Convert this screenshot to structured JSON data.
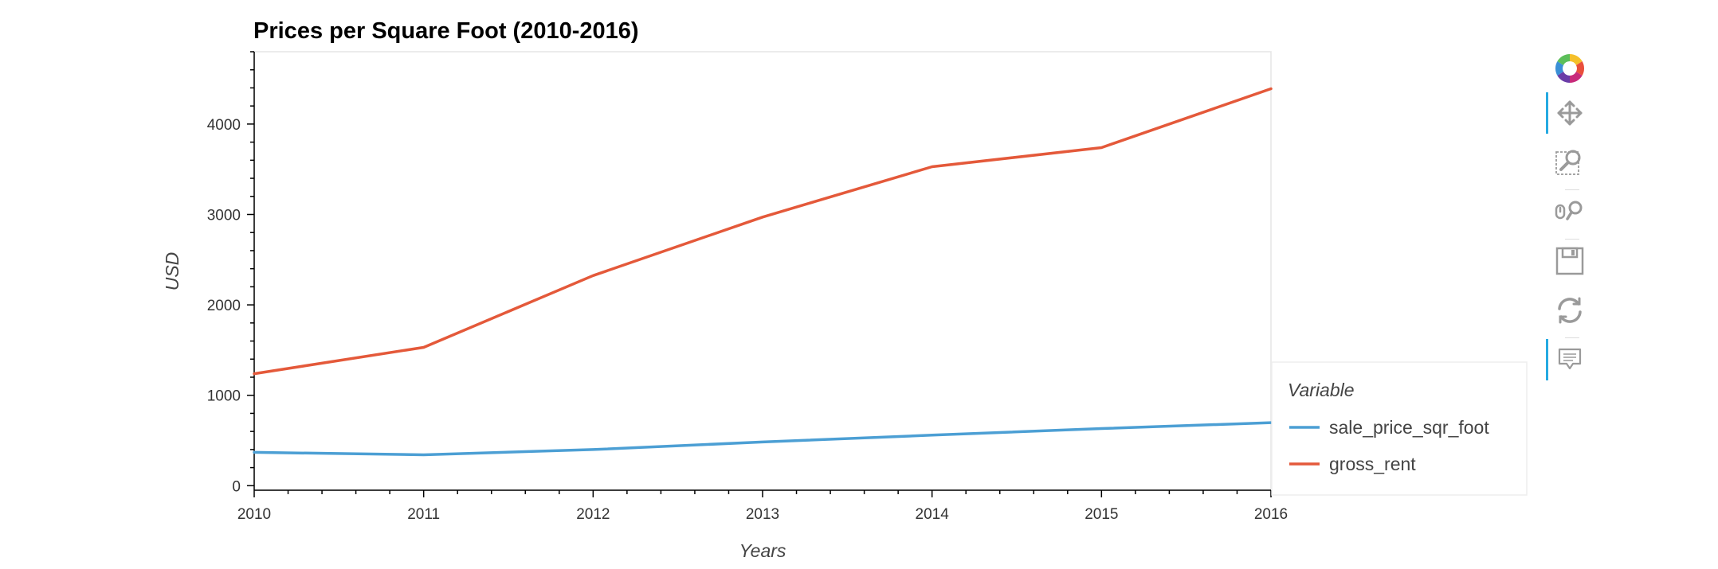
{
  "chart_data": {
    "type": "line",
    "title": "Prices per Square Foot (2010-2016)",
    "xlabel": "Years",
    "ylabel": "USD",
    "x": [
      2010,
      2011,
      2012,
      2013,
      2014,
      2015,
      2016
    ],
    "xlim": [
      2010,
      2016
    ],
    "ylim": [
      -50,
      4800
    ],
    "x_ticks": [
      "2010",
      "2011",
      "2012",
      "2013",
      "2014",
      "2015",
      "2016"
    ],
    "y_ticks": [
      "0",
      "1000",
      "2000",
      "3000",
      "4000"
    ],
    "grid": false,
    "legend_title": "Variable",
    "legend_position": "bottom-right, outside plot",
    "series": [
      {
        "name": "sale_price_sqr_foot",
        "color": "#4c9fd4",
        "values": [
          369.3,
          341.9,
          399.4,
          483.6,
          559.0,
          632.1,
          697.6
        ]
      },
      {
        "name": "gross_rent",
        "color": "#e4593a",
        "values": [
          1239,
          1530,
          2324,
          2971,
          3528,
          3739,
          4391
        ]
      }
    ]
  },
  "toolbar": {
    "tools": [
      {
        "name": "bokeh-logo-icon",
        "active": false
      },
      {
        "name": "pan-tool-icon",
        "active": true
      },
      {
        "name": "box-zoom-tool-icon",
        "active": false
      },
      {
        "name": "wheel-zoom-tool-icon",
        "active": false
      },
      {
        "name": "save-tool-icon",
        "active": false
      },
      {
        "name": "reset-tool-icon",
        "active": false
      },
      {
        "name": "hover-tool-icon",
        "active": true
      }
    ]
  }
}
